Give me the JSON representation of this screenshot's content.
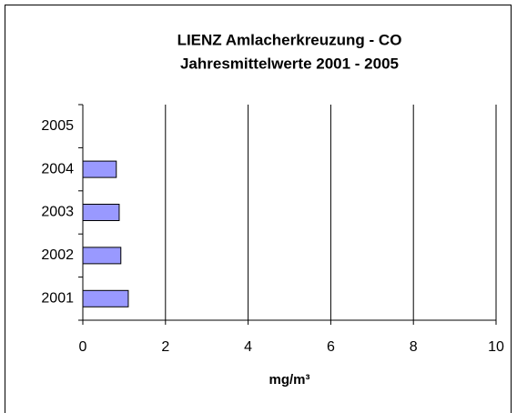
{
  "chart_data": {
    "type": "bar",
    "orientation": "horizontal",
    "title": "LIENZ Amlacherkreuzung - CO",
    "subtitle": "Jahresmittelwerte 2001 - 2005",
    "x_label": "mg/m³",
    "categories": [
      "2001",
      "2002",
      "2003",
      "2004",
      "2005"
    ],
    "values": [
      1.1,
      0.92,
      0.88,
      0.81,
      null
    ],
    "color": "#9999ff",
    "xlim": [
      0,
      10
    ],
    "xticks": [
      0,
      2,
      4,
      6,
      8,
      10
    ],
    "grid": true
  }
}
